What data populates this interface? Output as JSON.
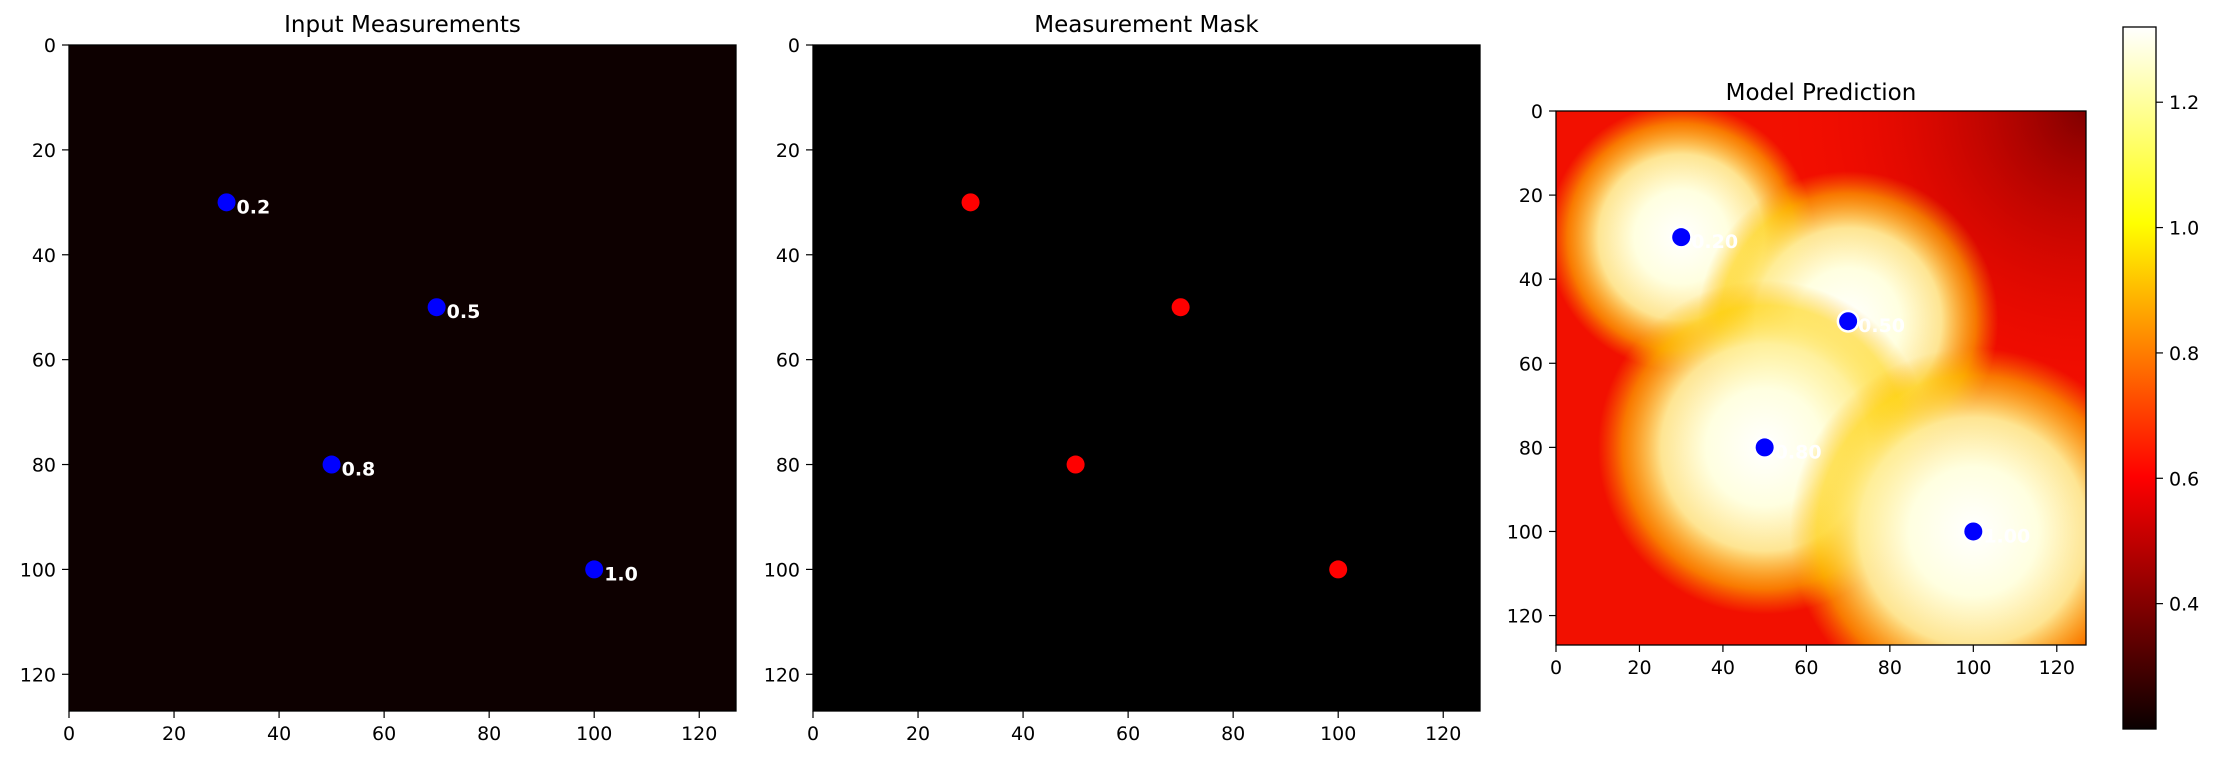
{
  "chart_data": [
    {
      "type": "heatmap",
      "title": "Input Measurements",
      "xlim": [
        0,
        127
      ],
      "ylim": [
        127,
        0
      ],
      "xticks": [
        0,
        20,
        40,
        60,
        80,
        100,
        120
      ],
      "yticks": [
        0,
        20,
        40,
        60,
        80,
        100,
        120
      ],
      "background": "#0d0000",
      "points": [
        {
          "x": 30,
          "y": 30,
          "label": "0.2",
          "color": "#0000ff"
        },
        {
          "x": 70,
          "y": 50,
          "label": "0.5",
          "color": "#0000ff"
        },
        {
          "x": 50,
          "y": 80,
          "label": "0.8",
          "color": "#0000ff"
        },
        {
          "x": 100,
          "y": 100,
          "label": "1.0",
          "color": "#0000ff"
        }
      ]
    },
    {
      "type": "heatmap",
      "title": "Measurement Mask",
      "xlim": [
        0,
        127
      ],
      "ylim": [
        127,
        0
      ],
      "xticks": [
        0,
        20,
        40,
        60,
        80,
        100,
        120
      ],
      "yticks": [
        0,
        20,
        40,
        60,
        80,
        100,
        120
      ],
      "background": "#000000",
      "points": [
        {
          "x": 30,
          "y": 30,
          "color": "#ff0000"
        },
        {
          "x": 70,
          "y": 50,
          "color": "#ff0000"
        },
        {
          "x": 50,
          "y": 80,
          "color": "#ff0000"
        },
        {
          "x": 100,
          "y": 100,
          "color": "#ff0000"
        }
      ]
    },
    {
      "type": "heatmap",
      "title": "Model Prediction",
      "colormap": "hot",
      "xlim": [
        0,
        127
      ],
      "ylim": [
        127,
        0
      ],
      "xticks": [
        0,
        20,
        40,
        60,
        80,
        100,
        120
      ],
      "yticks": [
        0,
        20,
        40,
        60,
        80,
        100,
        120
      ],
      "clim": [
        0.2,
        1.32
      ],
      "colorbar_ticks": [
        "0.4",
        "0.6",
        "0.8",
        "1.0",
        "1.2"
      ],
      "points": [
        {
          "x": 30,
          "y": 30,
          "label": "0.20",
          "color": "#0000ff"
        },
        {
          "x": 70,
          "y": 50,
          "label": "0.50",
          "color": "#0000ff"
        },
        {
          "x": 50,
          "y": 80,
          "label": "0.80",
          "color": "#0000ff"
        },
        {
          "x": 100,
          "y": 100,
          "label": "1.00",
          "color": "#0000ff"
        }
      ]
    }
  ]
}
